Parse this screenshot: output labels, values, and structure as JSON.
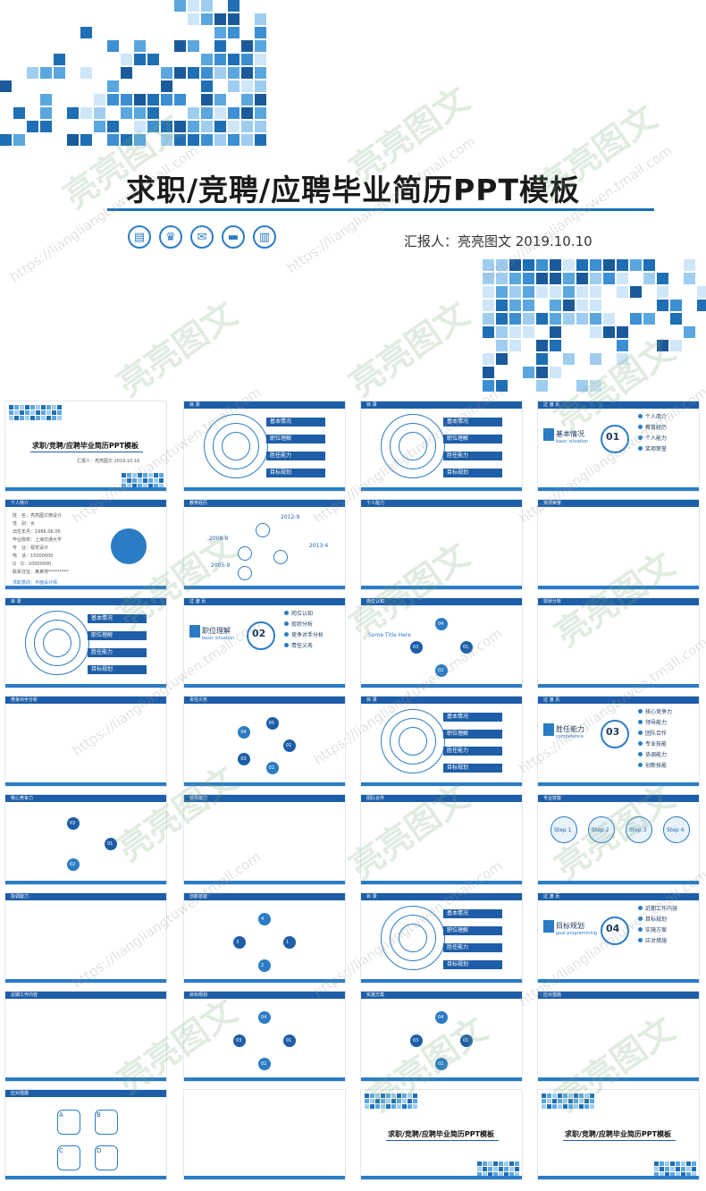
{
  "hero": {
    "title": "求职/竞聘/应聘毕业简历PPT模板",
    "reporter": "汇报人：亮亮图文 2019.10.10",
    "icons": [
      "document-icon",
      "trophy-icon",
      "mail-icon",
      "folder-icon",
      "book-icon"
    ]
  },
  "watermark": {
    "brand": "亮亮图文",
    "url": "https://liangliangtuwen.tmall.com"
  },
  "colors": {
    "accent": "#1e5ea8",
    "light": "#2b7cc4",
    "tile_a": "#1e6fb5",
    "tile_b": "#5aa7e0",
    "tile_c": "#9fcdf0"
  },
  "slides": [
    {
      "id": "s1",
      "header": "",
      "title": "求职/竞聘/应聘毕业简历PPT模板",
      "sub": "汇报人：亮亮图文 2019.10.10"
    },
    {
      "id": "s2",
      "header": "目 录",
      "items": [
        "基本情况",
        "职位理解",
        "胜任能力",
        "目标规划"
      ]
    },
    {
      "id": "s3",
      "header": "目 录",
      "items": [
        "基本情况",
        "职位理解",
        "胜任能力",
        "目标规划"
      ]
    },
    {
      "id": "s4",
      "header": "过 渡 页",
      "section": "基本情况",
      "en": "basic situation",
      "num": "01",
      "items": [
        "个人简介",
        "教育经历",
        "个人能力",
        "奖项荣誉"
      ]
    },
    {
      "id": "s5",
      "header": "个人简介",
      "lines": [
        "姓　名：亮亮图文微设计",
        "性　别：女",
        "出生年月：1986.06.06",
        "毕业院校：上海交通大学",
        "专　业：视觉设计",
        "电　话：15000000",
        "Q　Q：10000000",
        "联系住址：某某地*********"
      ],
      "footer": "求职意向：平面设计师"
    },
    {
      "id": "s6",
      "header": "教育经历",
      "years": [
        "2012-9",
        "2008-9",
        "2013-4",
        "2005-9"
      ]
    },
    {
      "id": "s7",
      "header": "个人能力"
    },
    {
      "id": "s8",
      "header": "奖项荣誉"
    },
    {
      "id": "s9",
      "header": "目 录",
      "items": [
        "基本情况",
        "职位理解",
        "胜任能力",
        "目标规划"
      ]
    },
    {
      "id": "s10",
      "header": "过 渡 页",
      "section": "职位理解",
      "en": "basic situation",
      "num": "02",
      "items": [
        "岗位认知",
        "现状分析",
        "竞争对手分析",
        "责任义务"
      ]
    },
    {
      "id": "s11",
      "header": "岗位认知",
      "heading": "Some Title Here",
      "nums": [
        "01",
        "02",
        "03",
        "04"
      ]
    },
    {
      "id": "s12",
      "header": "现状分析"
    },
    {
      "id": "s13",
      "header": "竞争对手分析"
    },
    {
      "id": "s14",
      "header": "责任义务",
      "nums": [
        "01",
        "02",
        "03",
        "04",
        "05"
      ]
    },
    {
      "id": "s15",
      "header": "目 录",
      "items": [
        "基本情况",
        "职位理解",
        "胜任能力",
        "目标规划"
      ]
    },
    {
      "id": "s16",
      "header": "过 渡 页",
      "section": "胜任能力",
      "en": "competence",
      "num": "03",
      "items": [
        "核心竞争力",
        "领导能力",
        "团队合作",
        "专业技能",
        "协调能力",
        "创新技能"
      ]
    },
    {
      "id": "s17",
      "header": "核心竞争力",
      "nums": [
        "01",
        "02",
        "03"
      ]
    },
    {
      "id": "s18",
      "header": "领导能力"
    },
    {
      "id": "s19",
      "header": "团队合作"
    },
    {
      "id": "s20",
      "header": "专业技能",
      "steps": [
        "Step 1",
        "Step 2",
        "Step 3",
        "Step 4"
      ]
    },
    {
      "id": "s21",
      "header": "协调能力"
    },
    {
      "id": "s22",
      "header": "创新技能",
      "nums": [
        "1",
        "2",
        "3",
        "4"
      ]
    },
    {
      "id": "s23",
      "header": "目 录",
      "items": [
        "基本情况",
        "职位理解",
        "胜任能力",
        "目标规划"
      ]
    },
    {
      "id": "s24",
      "header": "过 渡 页",
      "section": "目标规划",
      "en": "goal programming",
      "num": "04",
      "items": [
        "近期工作内容",
        "目标规划",
        "实施方案",
        "应对措施"
      ]
    },
    {
      "id": "s25",
      "header": "近期工作内容"
    },
    {
      "id": "s26",
      "header": "目标规划",
      "nums": [
        "01",
        "02",
        "03",
        "04"
      ]
    },
    {
      "id": "s27",
      "header": "实施方案",
      "nums": [
        "01",
        "02",
        "03",
        "04"
      ]
    },
    {
      "id": "s28",
      "header": "应对措施"
    },
    {
      "id": "s29",
      "header": "应对措施",
      "letters": [
        "A",
        "B",
        "C",
        "D"
      ]
    },
    {
      "id": "s30",
      "header": ""
    },
    {
      "id": "s31",
      "header": "",
      "title": "求职/竞聘/应聘毕业简历PPT模板"
    },
    {
      "id": "s32",
      "header": "",
      "title": "求职/竞聘/应聘毕业简历PPT模板"
    }
  ]
}
